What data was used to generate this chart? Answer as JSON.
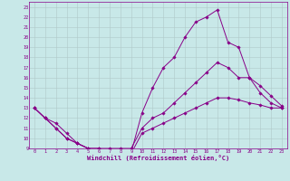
{
  "xlabel": "Windchill (Refroidissement éolien,°C)",
  "line_color": "#880088",
  "bg_color": "#c8e8e8",
  "grid_color": "#b0c8c8",
  "xlim": [
    -0.5,
    23.5
  ],
  "ylim": [
    9,
    23.5
  ],
  "xticks": [
    0,
    1,
    2,
    3,
    4,
    5,
    6,
    7,
    8,
    9,
    10,
    11,
    12,
    13,
    14,
    15,
    16,
    17,
    18,
    19,
    20,
    21,
    22,
    23
  ],
  "yticks": [
    9,
    10,
    11,
    12,
    13,
    14,
    15,
    16,
    17,
    18,
    19,
    20,
    21,
    22,
    23
  ],
  "curve1_x": [
    0,
    1,
    2,
    3,
    4,
    5,
    6,
    7,
    8,
    9,
    10,
    11,
    12,
    13,
    14,
    15,
    16,
    17,
    18,
    19,
    20,
    21,
    22,
    23
  ],
  "curve1_y": [
    13,
    12,
    11.5,
    10.5,
    9.5,
    9,
    8.8,
    8.6,
    8.6,
    8.6,
    12.5,
    15,
    17,
    18,
    20,
    21.5,
    22,
    22.7,
    19.5,
    19,
    16,
    14.5,
    13.5,
    13
  ],
  "curve2_x": [
    0,
    1,
    2,
    3,
    4,
    5,
    6,
    7,
    8,
    9,
    10,
    11,
    12,
    13,
    14,
    15,
    16,
    17,
    18,
    19,
    20,
    21,
    22,
    23
  ],
  "curve2_y": [
    13,
    12,
    11,
    10,
    9.5,
    9,
    9,
    9,
    9,
    9,
    11,
    12,
    12.5,
    13.5,
    14.5,
    15.5,
    16.5,
    17.5,
    17,
    16,
    16,
    15.2,
    14.2,
    13.2
  ],
  "curve3_x": [
    0,
    1,
    2,
    3,
    4,
    5,
    6,
    7,
    8,
    9,
    10,
    11,
    12,
    13,
    14,
    15,
    16,
    17,
    18,
    19,
    20,
    21,
    22,
    23
  ],
  "curve3_y": [
    13,
    12,
    11,
    10,
    9.5,
    9,
    9,
    8.5,
    8.5,
    8.5,
    10.5,
    11,
    11.5,
    12,
    12.5,
    13,
    13.5,
    14,
    14,
    13.8,
    13.5,
    13.3,
    13,
    13
  ]
}
